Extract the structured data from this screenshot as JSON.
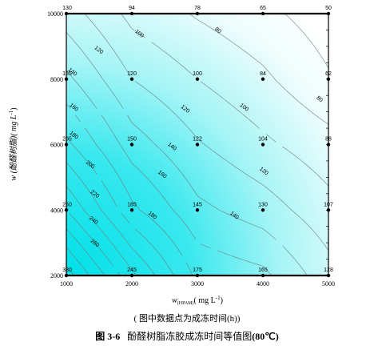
{
  "chart_data": {
    "type": "contour",
    "x_axis": {
      "label": "w(HPAM)( mg L-1)",
      "label_main": "w",
      "label_sub": "(HPAM)",
      "label_unit": "( mg L",
      "label_sup": "-1",
      "label_close": ")",
      "ticks": [
        1000,
        2000,
        3000,
        4000,
        5000
      ],
      "tick_labels": [
        "1000",
        "2000",
        "3000",
        "4000",
        "5000"
      ],
      "range": [
        1000,
        5000
      ]
    },
    "y_axis": {
      "label": "w (酚醛树脂)( mg L-1)",
      "label_main": "w (酚醛树脂)( mg L",
      "label_sup": "-1",
      "label_close": ")",
      "ticks": [
        2000,
        4000,
        6000,
        8000,
        10000
      ],
      "tick_labels": [
        "2000",
        "4000",
        "6000",
        "8000",
        "10000"
      ],
      "range": [
        2000,
        10000
      ]
    },
    "points": [
      {
        "x": 1000,
        "y": 10000,
        "label": "130"
      },
      {
        "x": 2000,
        "y": 10000,
        "label": "94"
      },
      {
        "x": 3000,
        "y": 10000,
        "label": "78"
      },
      {
        "x": 4000,
        "y": 10000,
        "label": "65"
      },
      {
        "x": 5000,
        "y": 10000,
        "label": "50"
      },
      {
        "x": 1000,
        "y": 8000,
        "label": "165"
      },
      {
        "x": 2000,
        "y": 8000,
        "label": "120"
      },
      {
        "x": 3000,
        "y": 8000,
        "label": "100"
      },
      {
        "x": 4000,
        "y": 8000,
        "label": "84"
      },
      {
        "x": 5000,
        "y": 8000,
        "label": "62"
      },
      {
        "x": 1000,
        "y": 6000,
        "label": "205"
      },
      {
        "x": 2000,
        "y": 6000,
        "label": "150"
      },
      {
        "x": 3000,
        "y": 6000,
        "label": "122"
      },
      {
        "x": 4000,
        "y": 6000,
        "label": "104"
      },
      {
        "x": 5000,
        "y": 6000,
        "label": "88"
      },
      {
        "x": 1000,
        "y": 4000,
        "label": "260"
      },
      {
        "x": 2000,
        "y": 4000,
        "label": "185"
      },
      {
        "x": 3000,
        "y": 4000,
        "label": "145"
      },
      {
        "x": 4000,
        "y": 4000,
        "label": "130"
      },
      {
        "x": 5000,
        "y": 4000,
        "label": "107"
      },
      {
        "x": 1000,
        "y": 2000,
        "label": "330"
      },
      {
        "x": 2000,
        "y": 2000,
        "label": "245"
      },
      {
        "x": 3000,
        "y": 2000,
        "label": "175"
      },
      {
        "x": 4000,
        "y": 2000,
        "label": "165"
      },
      {
        "x": 5000,
        "y": 2000,
        "label": "128"
      }
    ],
    "contour_labels": [
      {
        "x": 1480,
        "y": 8850,
        "label": "120"
      },
      {
        "x": 2100,
        "y": 9350,
        "label": "100"
      },
      {
        "x": 3300,
        "y": 9450,
        "label": "80"
      },
      {
        "x": 1080,
        "y": 8180,
        "label": "140"
      },
      {
        "x": 1100,
        "y": 7100,
        "label": "160"
      },
      {
        "x": 1100,
        "y": 6250,
        "label": "180"
      },
      {
        "x": 1350,
        "y": 5350,
        "label": "200"
      },
      {
        "x": 1420,
        "y": 4450,
        "label": "220"
      },
      {
        "x": 1400,
        "y": 3650,
        "label": "240"
      },
      {
        "x": 1420,
        "y": 2950,
        "label": "260"
      },
      {
        "x": 2800,
        "y": 7050,
        "label": "120"
      },
      {
        "x": 2600,
        "y": 5900,
        "label": "140"
      },
      {
        "x": 2450,
        "y": 5050,
        "label": "160"
      },
      {
        "x": 2300,
        "y": 3800,
        "label": "180"
      },
      {
        "x": 3700,
        "y": 7100,
        "label": "100"
      },
      {
        "x": 4850,
        "y": 7350,
        "label": "80"
      },
      {
        "x": 4000,
        "y": 5150,
        "label": "120"
      },
      {
        "x": 3550,
        "y": 3800,
        "label": "140"
      }
    ],
    "grid": false,
    "colors": {
      "high": "#00e3ea",
      "mid": "#7ff0f2",
      "low": "#e8fdfd",
      "contour_line": "#6f7f80",
      "axis": "#000000"
    }
  },
  "captions": {
    "note": "( 图中数据点为成冻时间(h))",
    "figure_label": "图 3-6",
    "figure_title": "酚醛树脂冻胶成冻时间等值图",
    "figure_temp": "(80℃)"
  }
}
